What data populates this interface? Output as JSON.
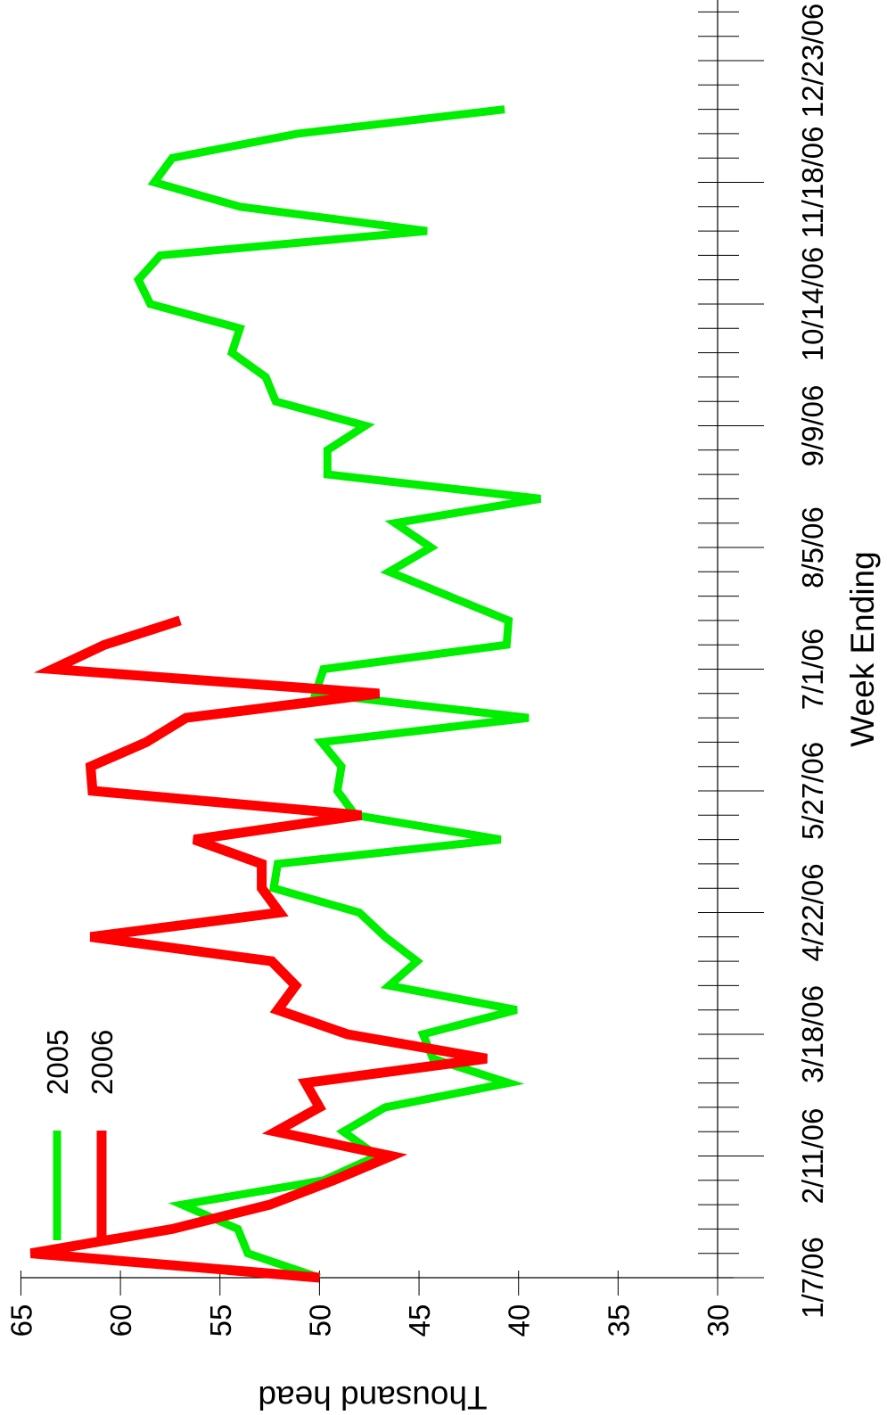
{
  "chart_data": {
    "type": "line",
    "orientation": "rotated-90-clockwise",
    "xlabel": "Week Ending",
    "ylabel": "Thousand head",
    "x_tick_labels": [
      "1/7/06",
      "2/11/06",
      "3/18/06",
      "4/22/06",
      "5/27/06",
      "7/1/06",
      "8/5/06",
      "9/9/06",
      "10/14/06",
      "11/18/06",
      "12/23/06"
    ],
    "y_ticks": [
      30,
      35,
      40,
      45,
      50,
      55,
      60,
      65
    ],
    "ylim": [
      30,
      65
    ],
    "x_weeks": 52,
    "legend_placement": "top-left",
    "series": [
      {
        "name": "2005",
        "color": "#00ee00",
        "values": [
          50.0,
          53.6,
          54.1,
          56.9,
          49.8,
          47.1,
          48.8,
          46.7,
          40.5,
          44.3,
          44.8,
          40.1,
          46.5,
          45.1,
          46.7,
          48.0,
          52.3,
          52.1,
          40.9,
          48.2,
          49.1,
          48.9,
          49.9,
          39.5,
          50.2,
          49.8,
          40.6,
          40.5,
          43.5,
          46.5,
          44.4,
          46.2,
          38.9,
          49.6,
          49.6,
          47.7,
          52.2,
          52.7,
          54.4,
          54.0,
          58.5,
          59.1,
          58.0,
          44.6,
          54.0,
          58.3,
          57.4,
          51.1,
          40.7
        ]
      },
      {
        "name": "2006",
        "color": "#ff0000",
        "values": [
          50.0,
          64.5,
          57.4,
          52.5,
          49.3,
          46.4,
          52.2,
          50.0,
          50.7,
          41.6,
          48.6,
          52.1,
          51.2,
          52.4,
          61.5,
          52.0,
          52.9,
          52.9,
          56.3,
          47.9,
          61.4,
          61.5,
          58.7,
          56.7,
          47.0,
          63.4,
          60.8,
          57.0
        ]
      }
    ]
  }
}
